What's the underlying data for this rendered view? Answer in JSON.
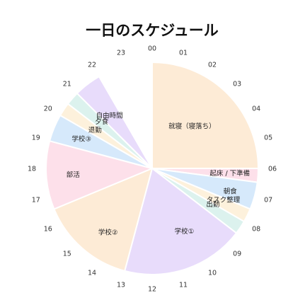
{
  "chart_data": {
    "type": "pie",
    "title": "一日のスケジュール",
    "hour_labels": [
      "00",
      "01",
      "02",
      "03",
      "04",
      "05",
      "06",
      "07",
      "08",
      "09",
      "10",
      "11",
      "12",
      "13",
      "14",
      "15",
      "16",
      "17",
      "18",
      "19",
      "20",
      "21",
      "22",
      "23"
    ],
    "slices": [
      {
        "label": "就寝（寝落ち）",
        "start": 0.0,
        "end": 6.0,
        "color": "#fdebd6"
      },
      {
        "label": "起床 / 下準備",
        "start": 6.0,
        "end": 6.5,
        "color": "#fde0ea"
      },
      {
        "label": "朝食",
        "start": 6.5,
        "end": 7.5,
        "color": "#d6e9fb"
      },
      {
        "label": "タスク整理",
        "start": 7.5,
        "end": 8.0,
        "color": "#fdf1dc"
      },
      {
        "label": "出勤",
        "start": 8.0,
        "end": 8.5,
        "color": "#dcf2ee"
      },
      {
        "label": "学校①",
        "start": 8.5,
        "end": 13.0,
        "color": "#e8dcfb"
      },
      {
        "label": "学校②",
        "start": 13.0,
        "end": 16.5,
        "color": "#fdebd6"
      },
      {
        "label": "部活",
        "start": 16.5,
        "end": 19.0,
        "color": "#fde0ea"
      },
      {
        "label": "学校③",
        "start": 19.0,
        "end": 20.0,
        "color": "#d6e9fb"
      },
      {
        "label": "退勤",
        "start": 20.0,
        "end": 20.5,
        "color": "#fdf1dc"
      },
      {
        "label": "夕食",
        "start": 20.5,
        "end": 21.0,
        "color": "#dcf2ee"
      },
      {
        "label": "自由時間",
        "start": 21.0,
        "end": 22.0,
        "color": "#e8dcfb"
      },
      {
        "label": "",
        "start": 22.0,
        "end": 23.0,
        "color": "#ffffff"
      }
    ]
  }
}
